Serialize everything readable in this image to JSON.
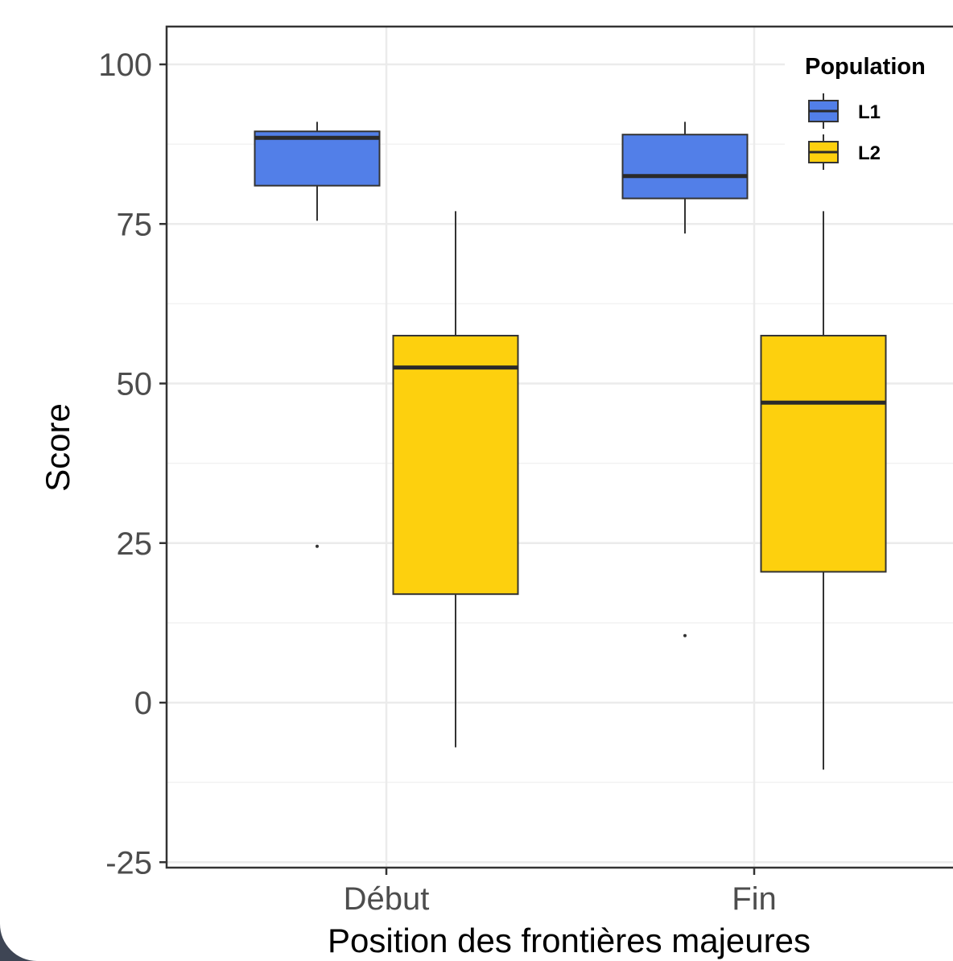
{
  "chart_data": {
    "type": "boxplot",
    "xlabel": "Position des frontières majeures",
    "ylabel": "Score",
    "categories": [
      "Début",
      "Fin"
    ],
    "ylim": [
      -25,
      100
    ],
    "yticks": [
      -25,
      0,
      25,
      50,
      75,
      100
    ],
    "grid": true,
    "legend": {
      "title": "Population",
      "position": "top-right"
    },
    "series": [
      {
        "name": "L1",
        "color": "#527fe8",
        "boxes": [
          {
            "category": "Début",
            "whisker_low": 75.5,
            "q1": 81,
            "median": 88.5,
            "q3": 89.5,
            "whisker_high": 91,
            "outliers": [
              24.5
            ]
          },
          {
            "category": "Fin",
            "whisker_low": 73.5,
            "q1": 79,
            "median": 82.5,
            "q3": 89,
            "whisker_high": 91,
            "outliers": [
              10.5
            ]
          }
        ]
      },
      {
        "name": "L2",
        "color": "#fdd00e",
        "boxes": [
          {
            "category": "Début",
            "whisker_low": -7,
            "q1": 17,
            "median": 52.5,
            "q3": 57.5,
            "whisker_high": 77,
            "outliers": []
          },
          {
            "category": "Fin",
            "whisker_low": -10.5,
            "q1": 20.5,
            "median": 47,
            "q3": 57.5,
            "whisker_high": 77,
            "outliers": []
          }
        ]
      }
    ]
  }
}
